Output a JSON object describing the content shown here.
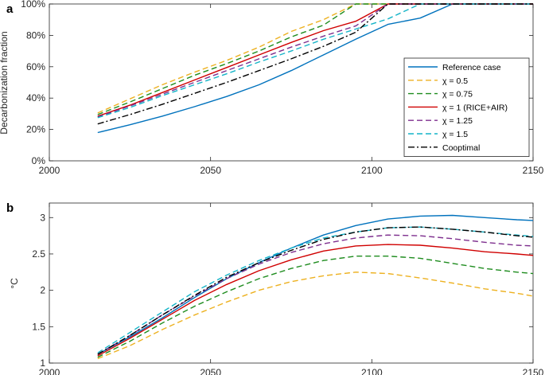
{
  "chart_data": [
    {
      "panel": "a",
      "type": "line",
      "title": "",
      "xlabel": "",
      "ylabel": "Decarbonization fraction",
      "xlim": [
        2000,
        2150
      ],
      "ylim": [
        0,
        100
      ],
      "x_ticks": [
        "2000",
        "2050",
        "2100",
        "2150"
      ],
      "y_ticks": [
        "0%",
        "20%",
        "40%",
        "60%",
        "80%",
        "100%"
      ],
      "legend_position": "center-right",
      "legend": [
        "Reference case",
        "χ = 0.5",
        "χ = 0.75",
        "χ = 1 (RICE+AIR)",
        "χ = 1.25",
        "χ = 1.5",
        "Cooptimal"
      ],
      "series": [
        {
          "name": "Reference case",
          "color": "#0072BD",
          "dash": "solid",
          "x": [
            2015,
            2025,
            2035,
            2045,
            2055,
            2065,
            2075,
            2085,
            2095,
            2105,
            2115,
            2125,
            2135,
            2145,
            2150
          ],
          "values": [
            18,
            23,
            28.5,
            34.5,
            41,
            48.5,
            57.5,
            67.5,
            77.5,
            87,
            91,
            100,
            100,
            100,
            100
          ]
        },
        {
          "name": "χ = 0.5",
          "color": "#EDB120",
          "dash": "dashed",
          "x": [
            2015,
            2025,
            2035,
            2045,
            2055,
            2065,
            2075,
            2085,
            2095,
            2105,
            2115,
            2125,
            2135,
            2145,
            2150
          ],
          "values": [
            30.5,
            39.5,
            48.5,
            56.5,
            64,
            72.5,
            82.5,
            90,
            100,
            100,
            100,
            100,
            100,
            100,
            100
          ]
        },
        {
          "name": "χ = 0.75",
          "color": "#1E8C1E",
          "dash": "dashed",
          "x": [
            2015,
            2025,
            2035,
            2045,
            2055,
            2065,
            2075,
            2085,
            2095,
            2105,
            2115,
            2125,
            2135,
            2145,
            2150
          ],
          "values": [
            29.5,
            37.5,
            46,
            54.5,
            62,
            70,
            79,
            86.5,
            100,
            100,
            100,
            100,
            100,
            100,
            100
          ]
        },
        {
          "name": "χ = 1 (RICE+AIR)",
          "color": "#D00000",
          "dash": "solid",
          "x": [
            2015,
            2025,
            2035,
            2045,
            2055,
            2065,
            2075,
            2085,
            2095,
            2105,
            2115,
            2125,
            2135,
            2145,
            2150
          ],
          "values": [
            28.5,
            35.5,
            43.5,
            51.5,
            59.5,
            67.5,
            75.5,
            83,
            89,
            100,
            100,
            100,
            100,
            100,
            100
          ]
        },
        {
          "name": "χ = 1.25",
          "color": "#7E2F8E",
          "dash": "dashed",
          "x": [
            2015,
            2025,
            2035,
            2045,
            2055,
            2065,
            2075,
            2085,
            2095,
            2105,
            2115,
            2125,
            2135,
            2145,
            2150
          ],
          "values": [
            28,
            35,
            42.5,
            50,
            57.5,
            65,
            72.5,
            79.5,
            86,
            100,
            100,
            100,
            100,
            100,
            100
          ]
        },
        {
          "name": "χ = 1.5",
          "color": "#14B4C8",
          "dash": "dashed",
          "x": [
            2015,
            2025,
            2035,
            2045,
            2055,
            2065,
            2075,
            2085,
            2095,
            2105,
            2115,
            2125,
            2135,
            2145,
            2150
          ],
          "values": [
            27.5,
            34,
            41.5,
            48.5,
            55.5,
            63,
            70,
            77.5,
            84,
            90.5,
            100,
            100,
            100,
            100,
            100
          ]
        },
        {
          "name": "Cooptimal",
          "color": "#000000",
          "dash": "dashdot",
          "x": [
            2015,
            2025,
            2035,
            2045,
            2055,
            2065,
            2075,
            2085,
            2095,
            2105,
            2115,
            2125,
            2135,
            2145,
            2150
          ],
          "values": [
            23.5,
            29.5,
            36,
            43,
            50,
            57.5,
            65,
            73,
            82,
            100,
            100,
            100,
            100,
            100,
            100
          ]
        }
      ]
    },
    {
      "panel": "b",
      "type": "line",
      "title": "",
      "xlabel": "",
      "ylabel": "°C",
      "xlim": [
        2000,
        2150
      ],
      "ylim": [
        1,
        3.2
      ],
      "x_ticks": [
        "2000",
        "2050",
        "2100",
        "2150"
      ],
      "y_ticks": [
        "1",
        "1.5",
        "2",
        "2.5",
        "3"
      ],
      "series": [
        {
          "name": "Reference case",
          "color": "#0072BD",
          "dash": "solid",
          "x": [
            2015,
            2025,
            2035,
            2045,
            2055,
            2065,
            2075,
            2085,
            2095,
            2105,
            2115,
            2125,
            2135,
            2145,
            2150
          ],
          "values": [
            1.12,
            1.36,
            1.62,
            1.9,
            2.16,
            2.38,
            2.58,
            2.76,
            2.89,
            2.98,
            3.02,
            3.03,
            3.0,
            2.97,
            2.96
          ]
        },
        {
          "name": "χ = 0.5",
          "color": "#EDB120",
          "dash": "dashed",
          "x": [
            2015,
            2025,
            2035,
            2045,
            2055,
            2065,
            2075,
            2085,
            2095,
            2105,
            2115,
            2125,
            2135,
            2145,
            2150
          ],
          "values": [
            1.06,
            1.24,
            1.46,
            1.66,
            1.84,
            2.0,
            2.12,
            2.2,
            2.25,
            2.23,
            2.17,
            2.1,
            2.02,
            1.96,
            1.92
          ]
        },
        {
          "name": "χ = 0.75",
          "color": "#1E8C1E",
          "dash": "dashed",
          "x": [
            2015,
            2025,
            2035,
            2045,
            2055,
            2065,
            2075,
            2085,
            2095,
            2105,
            2115,
            2125,
            2135,
            2145,
            2150
          ],
          "values": [
            1.08,
            1.3,
            1.55,
            1.78,
            1.98,
            2.16,
            2.3,
            2.41,
            2.47,
            2.47,
            2.44,
            2.37,
            2.3,
            2.25,
            2.23
          ]
        },
        {
          "name": "χ = 1 (RICE+AIR)",
          "color": "#D00000",
          "dash": "solid",
          "x": [
            2015,
            2025,
            2035,
            2045,
            2055,
            2065,
            2075,
            2085,
            2095,
            2105,
            2115,
            2125,
            2135,
            2145,
            2150
          ],
          "values": [
            1.1,
            1.34,
            1.6,
            1.86,
            2.08,
            2.27,
            2.42,
            2.54,
            2.61,
            2.63,
            2.62,
            2.58,
            2.53,
            2.5,
            2.48
          ]
        },
        {
          "name": "χ = 1.25",
          "color": "#7E2F8E",
          "dash": "dashed",
          "x": [
            2015,
            2025,
            2035,
            2045,
            2055,
            2065,
            2075,
            2085,
            2095,
            2105,
            2115,
            2125,
            2135,
            2145,
            2150
          ],
          "values": [
            1.12,
            1.38,
            1.66,
            1.92,
            2.16,
            2.36,
            2.52,
            2.64,
            2.72,
            2.76,
            2.75,
            2.71,
            2.66,
            2.62,
            2.61
          ]
        },
        {
          "name": "χ = 1.5",
          "color": "#14B4C8",
          "dash": "dashed",
          "x": [
            2015,
            2025,
            2035,
            2045,
            2055,
            2065,
            2075,
            2085,
            2095,
            2105,
            2115,
            2125,
            2135,
            2145,
            2150
          ],
          "values": [
            1.14,
            1.42,
            1.7,
            1.98,
            2.21,
            2.41,
            2.58,
            2.72,
            2.8,
            2.86,
            2.87,
            2.84,
            2.8,
            2.76,
            2.74
          ]
        },
        {
          "name": "Cooptimal",
          "color": "#000000",
          "dash": "dashdot",
          "x": [
            2015,
            2025,
            2035,
            2045,
            2055,
            2065,
            2075,
            2085,
            2095,
            2105,
            2115,
            2125,
            2135,
            2145,
            2150
          ],
          "values": [
            1.12,
            1.38,
            1.66,
            1.93,
            2.18,
            2.38,
            2.55,
            2.7,
            2.8,
            2.86,
            2.87,
            2.84,
            2.8,
            2.75,
            2.73
          ]
        }
      ]
    }
  ]
}
